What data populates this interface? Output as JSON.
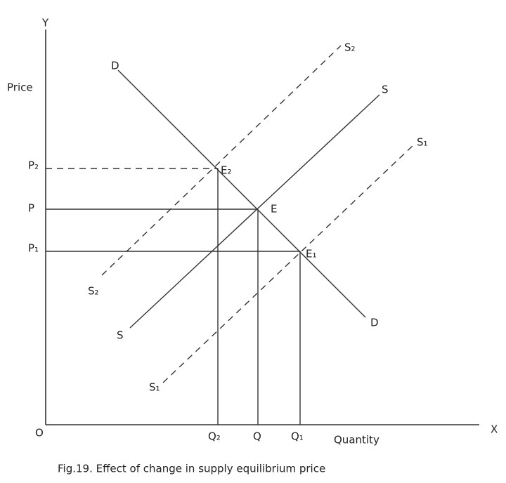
{
  "axes": {
    "y": "Y",
    "x": "X",
    "origin": "O",
    "y_title": "Price",
    "x_title": "Quantity"
  },
  "curves": {
    "demand": [
      "D",
      "D"
    ],
    "supply": [
      "S",
      "S"
    ],
    "supply_decrease": [
      "S₂",
      "S₂"
    ],
    "supply_increase": [
      "S₁",
      "S₁"
    ]
  },
  "points": [
    {
      "equilibrium": "E₂",
      "price": "P₂",
      "quantity": "Q₂"
    },
    {
      "equilibrium": "E",
      "price": "P",
      "quantity": "Q"
    },
    {
      "equilibrium": "E₁",
      "price": "P₁",
      "quantity": "Q₁"
    }
  ],
  "caption": "Fig.19. Effect of change in supply equilibrium price"
}
